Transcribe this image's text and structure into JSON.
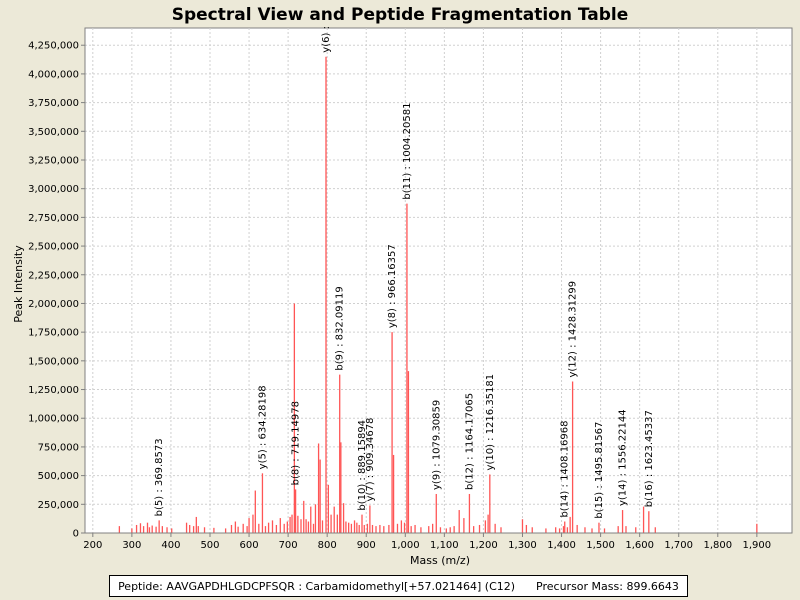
{
  "chart_data": {
    "type": "bar",
    "title": "Spectral View and Peptide Fragmentation Table",
    "xlabel": "Mass (m/z)",
    "ylabel": "Peak Intensity",
    "xlim": [
      180,
      1990
    ],
    "ylim": [
      0,
      4400000
    ],
    "grid": true,
    "bar_color": "#ff5555",
    "x_ticks": [
      {
        "v": 200,
        "label": "200"
      },
      {
        "v": 300,
        "label": "300"
      },
      {
        "v": 400,
        "label": "400"
      },
      {
        "v": 500,
        "label": "500"
      },
      {
        "v": 600,
        "label": "600"
      },
      {
        "v": 700,
        "label": "700"
      },
      {
        "v": 800,
        "label": "800"
      },
      {
        "v": 900,
        "label": "900"
      },
      {
        "v": 1000,
        "label": "1,000"
      },
      {
        "v": 1100,
        "label": "1,100"
      },
      {
        "v": 1200,
        "label": "1,200"
      },
      {
        "v": 1300,
        "label": "1,300"
      },
      {
        "v": 1400,
        "label": "1,400"
      },
      {
        "v": 1500,
        "label": "1,500"
      },
      {
        "v": 1600,
        "label": "1,600"
      },
      {
        "v": 1700,
        "label": "1,700"
      },
      {
        "v": 1800,
        "label": "1,800"
      },
      {
        "v": 1900,
        "label": "1,900"
      }
    ],
    "y_ticks": [
      {
        "v": 0,
        "label": "0"
      },
      {
        "v": 250000,
        "label": "250,000"
      },
      {
        "v": 500000,
        "label": "500,000"
      },
      {
        "v": 750000,
        "label": "750,000"
      },
      {
        "v": 1000000,
        "label": "1,000,000"
      },
      {
        "v": 1250000,
        "label": "1,250,000"
      },
      {
        "v": 1500000,
        "label": "1,500,000"
      },
      {
        "v": 1750000,
        "label": "1,750,000"
      },
      {
        "v": 2000000,
        "label": "2,000,000"
      },
      {
        "v": 2250000,
        "label": "2,250,000"
      },
      {
        "v": 2500000,
        "label": "2,500,000"
      },
      {
        "v": 2750000,
        "label": "2,750,000"
      },
      {
        "v": 3000000,
        "label": "3,000,000"
      },
      {
        "v": 3250000,
        "label": "3,250,000"
      },
      {
        "v": 3500000,
        "label": "3,500,000"
      },
      {
        "v": 3750000,
        "label": "3,750,000"
      },
      {
        "v": 4000000,
        "label": "4,000,000"
      },
      {
        "v": 4250000,
        "label": "4,250,000"
      }
    ],
    "peaks": [
      {
        "x": 268,
        "y": 60000
      },
      {
        "x": 300,
        "y": 40000
      },
      {
        "x": 312,
        "y": 70000
      },
      {
        "x": 322,
        "y": 85000
      },
      {
        "x": 330,
        "y": 60000
      },
      {
        "x": 340,
        "y": 90000
      },
      {
        "x": 345,
        "y": 50000
      },
      {
        "x": 352,
        "y": 65000
      },
      {
        "x": 362,
        "y": 55000
      },
      {
        "x": 369.8573,
        "y": 110000
      },
      {
        "x": 378,
        "y": 60000
      },
      {
        "x": 390,
        "y": 50000
      },
      {
        "x": 402,
        "y": 40000
      },
      {
        "x": 440,
        "y": 90000
      },
      {
        "x": 448,
        "y": 70000
      },
      {
        "x": 458,
        "y": 60000
      },
      {
        "x": 465,
        "y": 140000
      },
      {
        "x": 470,
        "y": 60000
      },
      {
        "x": 486,
        "y": 50000
      },
      {
        "x": 510,
        "y": 45000
      },
      {
        "x": 540,
        "y": 40000
      },
      {
        "x": 555,
        "y": 70000
      },
      {
        "x": 565,
        "y": 100000
      },
      {
        "x": 572,
        "y": 55000
      },
      {
        "x": 585,
        "y": 80000
      },
      {
        "x": 595,
        "y": 60000
      },
      {
        "x": 600,
        "y": 130000
      },
      {
        "x": 610,
        "y": 160000
      },
      {
        "x": 616,
        "y": 370000
      },
      {
        "x": 625,
        "y": 80000
      },
      {
        "x": 634.28198,
        "y": 520000
      },
      {
        "x": 642,
        "y": 60000
      },
      {
        "x": 650,
        "y": 90000
      },
      {
        "x": 660,
        "y": 110000
      },
      {
        "x": 670,
        "y": 70000
      },
      {
        "x": 680,
        "y": 130000
      },
      {
        "x": 690,
        "y": 80000
      },
      {
        "x": 698,
        "y": 100000
      },
      {
        "x": 705,
        "y": 140000
      },
      {
        "x": 710,
        "y": 160000
      },
      {
        "x": 716,
        "y": 2000000
      },
      {
        "x": 719.14978,
        "y": 380000
      },
      {
        "x": 725,
        "y": 150000
      },
      {
        "x": 733,
        "y": 120000
      },
      {
        "x": 740,
        "y": 280000
      },
      {
        "x": 746,
        "y": 120000
      },
      {
        "x": 752,
        "y": 100000
      },
      {
        "x": 758,
        "y": 230000
      },
      {
        "x": 765,
        "y": 80000
      },
      {
        "x": 770,
        "y": 250000
      },
      {
        "x": 778,
        "y": 780000
      },
      {
        "x": 782,
        "y": 640000
      },
      {
        "x": 788,
        "y": 110000
      },
      {
        "x": 797,
        "y": 4150000
      },
      {
        "x": 803,
        "y": 420000
      },
      {
        "x": 810,
        "y": 160000
      },
      {
        "x": 818,
        "y": 230000
      },
      {
        "x": 826,
        "y": 160000
      },
      {
        "x": 832.09119,
        "y": 1380000
      },
      {
        "x": 835,
        "y": 790000
      },
      {
        "x": 842,
        "y": 260000
      },
      {
        "x": 848,
        "y": 100000
      },
      {
        "x": 855,
        "y": 90000
      },
      {
        "x": 862,
        "y": 80000
      },
      {
        "x": 870,
        "y": 110000
      },
      {
        "x": 876,
        "y": 90000
      },
      {
        "x": 882,
        "y": 70000
      },
      {
        "x": 889.15894,
        "y": 160000
      },
      {
        "x": 895,
        "y": 70000
      },
      {
        "x": 903,
        "y": 80000
      },
      {
        "x": 909.34678,
        "y": 240000
      },
      {
        "x": 916,
        "y": 70000
      },
      {
        "x": 925,
        "y": 60000
      },
      {
        "x": 935,
        "y": 70000
      },
      {
        "x": 945,
        "y": 60000
      },
      {
        "x": 958,
        "y": 70000
      },
      {
        "x": 966.16357,
        "y": 1750000
      },
      {
        "x": 970,
        "y": 680000
      },
      {
        "x": 980,
        "y": 80000
      },
      {
        "x": 990,
        "y": 110000
      },
      {
        "x": 998,
        "y": 90000
      },
      {
        "x": 1004.20581,
        "y": 2870000
      },
      {
        "x": 1008,
        "y": 1410000
      },
      {
        "x": 1015,
        "y": 60000
      },
      {
        "x": 1025,
        "y": 70000
      },
      {
        "x": 1040,
        "y": 50000
      },
      {
        "x": 1060,
        "y": 60000
      },
      {
        "x": 1070,
        "y": 80000
      },
      {
        "x": 1079.30859,
        "y": 340000
      },
      {
        "x": 1090,
        "y": 50000
      },
      {
        "x": 1105,
        "y": 40000
      },
      {
        "x": 1115,
        "y": 50000
      },
      {
        "x": 1125,
        "y": 60000
      },
      {
        "x": 1138,
        "y": 200000
      },
      {
        "x": 1150,
        "y": 130000
      },
      {
        "x": 1164.17065,
        "y": 340000
      },
      {
        "x": 1175,
        "y": 60000
      },
      {
        "x": 1190,
        "y": 70000
      },
      {
        "x": 1205,
        "y": 110000
      },
      {
        "x": 1212,
        "y": 160000
      },
      {
        "x": 1216.35181,
        "y": 510000
      },
      {
        "x": 1230,
        "y": 80000
      },
      {
        "x": 1245,
        "y": 50000
      },
      {
        "x": 1300,
        "y": 120000
      },
      {
        "x": 1310,
        "y": 70000
      },
      {
        "x": 1325,
        "y": 50000
      },
      {
        "x": 1360,
        "y": 40000
      },
      {
        "x": 1385,
        "y": 50000
      },
      {
        "x": 1395,
        "y": 40000
      },
      {
        "x": 1405,
        "y": 60000
      },
      {
        "x": 1408.16968,
        "y": 100000
      },
      {
        "x": 1415,
        "y": 50000
      },
      {
        "x": 1422,
        "y": 140000
      },
      {
        "x": 1428.31299,
        "y": 1320000
      },
      {
        "x": 1440,
        "y": 70000
      },
      {
        "x": 1460,
        "y": 50000
      },
      {
        "x": 1478,
        "y": 40000
      },
      {
        "x": 1495.81567,
        "y": 90000
      },
      {
        "x": 1510,
        "y": 40000
      },
      {
        "x": 1545,
        "y": 60000
      },
      {
        "x": 1556.22144,
        "y": 200000
      },
      {
        "x": 1565,
        "y": 60000
      },
      {
        "x": 1590,
        "y": 50000
      },
      {
        "x": 1610,
        "y": 230000
      },
      {
        "x": 1623.45337,
        "y": 190000
      },
      {
        "x": 1640,
        "y": 50000
      },
      {
        "x": 1900,
        "y": 80000
      }
    ],
    "annotations": [
      {
        "x": 369.8573,
        "y": 110000,
        "label": "b(5) : 369.8573"
      },
      {
        "x": 634.28198,
        "y": 520000,
        "label": "y(5) : 634.28198"
      },
      {
        "x": 719.14978,
        "y": 380000,
        "label": "b(8) : 719.14978"
      },
      {
        "x": 797,
        "y": 4150000,
        "label": "y(6) :"
      },
      {
        "x": 832.09119,
        "y": 1380000,
        "label": "b(9) : 832.09119"
      },
      {
        "x": 889.15894,
        "y": 160000,
        "label": "b(10) : 889.15894"
      },
      {
        "x": 909.34678,
        "y": 240000,
        "label": "y(7) : 909.34678"
      },
      {
        "x": 966.16357,
        "y": 1750000,
        "label": "y(8) : 966.16357"
      },
      {
        "x": 1004.20581,
        "y": 2870000,
        "label": "b(11) : 1004.20581"
      },
      {
        "x": 1079.30859,
        "y": 340000,
        "label": "y(9) : 1079.30859"
      },
      {
        "x": 1164.17065,
        "y": 340000,
        "label": "b(12) : 1164.17065"
      },
      {
        "x": 1216.35181,
        "y": 510000,
        "label": "y(10) : 1216.35181"
      },
      {
        "x": 1408.16968,
        "y": 100000,
        "label": "b(14) : 1408.16968"
      },
      {
        "x": 1428.31299,
        "y": 1320000,
        "label": "y(12) : 1428.31299"
      },
      {
        "x": 1495.81567,
        "y": 90000,
        "label": "b(15) : 1495.81567"
      },
      {
        "x": 1556.22144,
        "y": 200000,
        "label": "y(14) : 1556.22144"
      },
      {
        "x": 1623.45337,
        "y": 190000,
        "label": "b(16) : 1623.45337"
      }
    ]
  },
  "info_bar": {
    "text": "Peptide: AAVGAPDHLGDCPFSQR : Carbamidomethyl[+57.021464] (C12)      Precursor Mass: 899.6643"
  }
}
